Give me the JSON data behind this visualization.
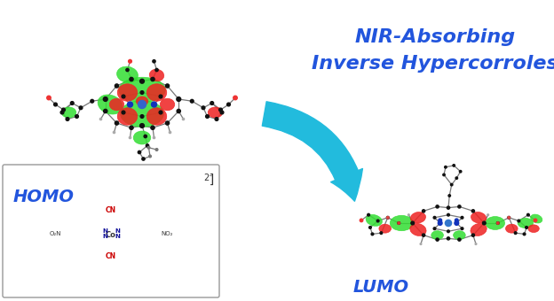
{
  "title_line1": "NIR-Absorbing",
  "title_line2": "Inverse Hypercorroles",
  "title_color": "#2255DD",
  "title_fontsize": 16,
  "homo_label": "HOMO",
  "lumo_label": "LUMO",
  "label_color": "#2255DD",
  "label_fontsize": 14,
  "arrow_color": "#22BBDD",
  "background_color": "#FFFFFF",
  "cn_color": "#CC0000",
  "nitro_color": "#333333",
  "phenyl_color": "#CC6600"
}
